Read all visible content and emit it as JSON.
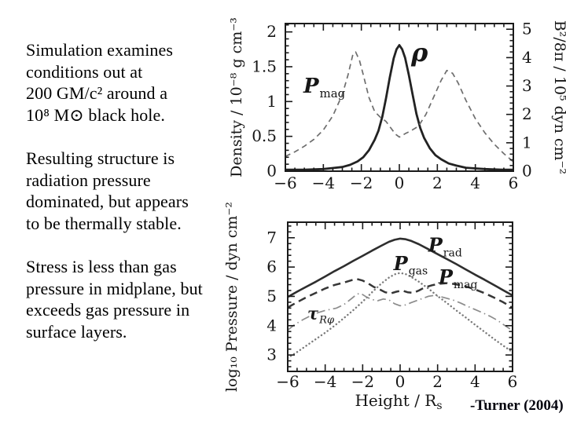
{
  "slide": {
    "background": "#ffffff",
    "text_color": "#000000",
    "paragraphs": [
      {
        "lines": [
          "Simulation examines",
          "conditions out at",
          "200 GM/c² around a",
          "10⁸ M⊙ black hole."
        ]
      },
      {
        "lines": [
          "Resulting structure is",
          "radiation pressure",
          "dominated, but appears",
          "to be thermally stable."
        ]
      },
      {
        "lines": [
          "Stress is less than gas",
          "pressure in midplane, but",
          "exceeds gas pressure in",
          "surface layers."
        ]
      }
    ],
    "attribution": "-Turner (2004)"
  },
  "chart_data": [
    {
      "type": "line",
      "title": "",
      "xlabel": "",
      "ylabel_left": "Density / 10⁻⁸ g cm⁻³",
      "ylabel_right": "B²/8π / 10⁵ dyn cm⁻²",
      "xlim": [
        -6,
        6
      ],
      "ylim_left": [
        0,
        2.12
      ],
      "ylim_right": [
        0,
        5.2
      ],
      "grid": false,
      "xticks": {
        "major": [
          -6,
          -4,
          -2,
          0,
          2,
          4,
          6
        ],
        "labels": [
          "−6",
          "−4",
          "−2",
          "0",
          "2",
          "4",
          "6"
        ],
        "minor_step": 0.5
      },
      "yticks_left": {
        "major": [
          0,
          0.5,
          1,
          1.5,
          2
        ],
        "labels": [
          "0",
          "0.5",
          "1",
          "1.5",
          "2"
        ],
        "minor_step": 0.1
      },
      "yticks_right": {
        "major": [
          0,
          1,
          2,
          3,
          4,
          5
        ],
        "labels": [
          "0",
          "1",
          "2",
          "3",
          "4",
          "5"
        ],
        "minor_step": 0.2
      },
      "series": [
        {
          "name": "rho",
          "label": "ρ",
          "axis": "left",
          "style": "solid",
          "color": "#222222",
          "width": 2.8,
          "points": [
            [
              -6,
              0.02
            ],
            [
              -5,
              0.02
            ],
            [
              -4,
              0.03
            ],
            [
              -3.5,
              0.045
            ],
            [
              -3,
              0.06
            ],
            [
              -2.6,
              0.09
            ],
            [
              -2.2,
              0.14
            ],
            [
              -1.9,
              0.2
            ],
            [
              -1.6,
              0.3
            ],
            [
              -1.3,
              0.45
            ],
            [
              -1.1,
              0.58
            ],
            [
              -0.9,
              0.78
            ],
            [
              -0.7,
              1.05
            ],
            [
              -0.5,
              1.35
            ],
            [
              -0.3,
              1.62
            ],
            [
              -0.15,
              1.75
            ],
            [
              0,
              1.81
            ],
            [
              0.15,
              1.75
            ],
            [
              0.3,
              1.63
            ],
            [
              0.5,
              1.38
            ],
            [
              0.7,
              1.1
            ],
            [
              0.9,
              0.82
            ],
            [
              1.1,
              0.62
            ],
            [
              1.3,
              0.48
            ],
            [
              1.6,
              0.33
            ],
            [
              1.9,
              0.23
            ],
            [
              2.2,
              0.17
            ],
            [
              2.6,
              0.11
            ],
            [
              3,
              0.08
            ],
            [
              3.5,
              0.05
            ],
            [
              4,
              0.04
            ],
            [
              4.5,
              0.03
            ],
            [
              5,
              0.025
            ],
            [
              5.5,
              0.02
            ],
            [
              6,
              0.02
            ]
          ]
        },
        {
          "name": "P_mag",
          "label": "P mag",
          "axis": "right",
          "style": "dashed",
          "color": "#6e6e6e",
          "width": 1.7,
          "points": [
            [
              -6,
              0.52
            ],
            [
              -5.5,
              0.68
            ],
            [
              -5,
              0.88
            ],
            [
              -4.5,
              1.12
            ],
            [
              -4,
              1.45
            ],
            [
              -3.5,
              1.95
            ],
            [
              -3,
              2.7
            ],
            [
              -2.7,
              3.4
            ],
            [
              -2.45,
              4.1
            ],
            [
              -2.3,
              4.2
            ],
            [
              -2.1,
              3.9
            ],
            [
              -1.9,
              3.4
            ],
            [
              -1.6,
              2.6
            ],
            [
              -1.3,
              2.1
            ],
            [
              -1,
              1.9
            ],
            [
              -0.7,
              1.75
            ],
            [
              -0.4,
              1.48
            ],
            [
              -0.2,
              1.3
            ],
            [
              0,
              1.2
            ],
            [
              0.3,
              1.32
            ],
            [
              0.6,
              1.42
            ],
            [
              1,
              1.58
            ],
            [
              1.4,
              2.0
            ],
            [
              1.8,
              2.6
            ],
            [
              2.2,
              3.2
            ],
            [
              2.5,
              3.55
            ],
            [
              2.8,
              3.45
            ],
            [
              3.1,
              3.1
            ],
            [
              3.5,
              2.5
            ],
            [
              4,
              1.85
            ],
            [
              4.5,
              1.35
            ],
            [
              5,
              0.95
            ],
            [
              5.5,
              0.62
            ],
            [
              6,
              0.33
            ]
          ]
        }
      ],
      "annotations": [
        {
          "text": "ρ",
          "sub": "",
          "x": 0.62,
          "y": 1.58,
          "size": 32,
          "sub_size": 0,
          "italic": true
        },
        {
          "text": "P",
          "sub": "mag",
          "x": -5.05,
          "y": 1.13,
          "size": 26,
          "sub_size": 15,
          "italic": true
        }
      ]
    },
    {
      "type": "line",
      "title": "",
      "xlabel": {
        "text": "Height / R",
        "sub": "s"
      },
      "ylabel_left": "log₁₀ Pressure / dyn cm⁻²",
      "xlim": [
        -6,
        6
      ],
      "ylim_left": [
        2.44,
        7.53
      ],
      "grid": false,
      "xticks": {
        "major": [
          -6,
          -4,
          -2,
          0,
          2,
          4,
          6
        ],
        "labels": [
          "−6",
          "−4",
          "−2",
          "0",
          "2",
          "4",
          "6"
        ],
        "minor_step": 0.5
      },
      "yticks_left": {
        "major": [
          3,
          4,
          5,
          6,
          7
        ],
        "labels": [
          "3",
          "4",
          "5",
          "6",
          "7"
        ],
        "minor_step": 0.2
      },
      "series": [
        {
          "name": "P_rad",
          "label": "P rad",
          "axis": "left",
          "style": "solid",
          "color": "#2e2e2e",
          "width": 2.6,
          "points": [
            [
              -6,
              4.98
            ],
            [
              -5.5,
              5.16
            ],
            [
              -5,
              5.33
            ],
            [
              -4.5,
              5.5
            ],
            [
              -4,
              5.68
            ],
            [
              -3.5,
              5.86
            ],
            [
              -3,
              6.03
            ],
            [
              -2.5,
              6.21
            ],
            [
              -2,
              6.38
            ],
            [
              -1.5,
              6.56
            ],
            [
              -1,
              6.73
            ],
            [
              -0.6,
              6.86
            ],
            [
              -0.3,
              6.93
            ],
            [
              0,
              6.97
            ],
            [
              0.3,
              6.95
            ],
            [
              0.6,
              6.89
            ],
            [
              1,
              6.78
            ],
            [
              1.5,
              6.61
            ],
            [
              2,
              6.44
            ],
            [
              2.5,
              6.27
            ],
            [
              3,
              6.1
            ],
            [
              3.5,
              5.92
            ],
            [
              4,
              5.74
            ],
            [
              4.5,
              5.57
            ],
            [
              5,
              5.39
            ],
            [
              5.5,
              5.21
            ],
            [
              6,
              5.03
            ]
          ]
        },
        {
          "name": "P_gas",
          "label": "P gas",
          "axis": "left",
          "style": "dotted",
          "color": "#7a7a7a",
          "width": 2.4,
          "points": [
            [
              -6,
              2.9
            ],
            [
              -5.5,
              3.1
            ],
            [
              -5,
              3.32
            ],
            [
              -4.5,
              3.54
            ],
            [
              -4,
              3.76
            ],
            [
              -3.5,
              4.0
            ],
            [
              -3,
              4.26
            ],
            [
              -2.5,
              4.53
            ],
            [
              -2,
              4.82
            ],
            [
              -1.5,
              5.14
            ],
            [
              -1,
              5.44
            ],
            [
              -0.6,
              5.64
            ],
            [
              -0.3,
              5.75
            ],
            [
              0,
              5.8
            ],
            [
              0.3,
              5.76
            ],
            [
              0.6,
              5.66
            ],
            [
              1,
              5.5
            ],
            [
              1.5,
              5.27
            ],
            [
              2,
              5.01
            ],
            [
              2.5,
              4.77
            ],
            [
              3,
              4.52
            ],
            [
              3.5,
              4.28
            ],
            [
              4,
              4.03
            ],
            [
              4.5,
              3.79
            ],
            [
              5,
              3.55
            ],
            [
              5.5,
              3.32
            ],
            [
              6,
              3.1
            ]
          ]
        },
        {
          "name": "P_mag",
          "label": "P mag",
          "axis": "left",
          "style": "dashed",
          "color": "#363636",
          "width": 2.5,
          "points": [
            [
              -6,
              4.62
            ],
            [
              -5.5,
              4.8
            ],
            [
              -5,
              4.97
            ],
            [
              -4.5,
              5.12
            ],
            [
              -4,
              5.27
            ],
            [
              -3.5,
              5.39
            ],
            [
              -3,
              5.47
            ],
            [
              -2.6,
              5.55
            ],
            [
              -2.3,
              5.59
            ],
            [
              -2,
              5.54
            ],
            [
              -1.7,
              5.44
            ],
            [
              -1.4,
              5.32
            ],
            [
              -1.1,
              5.24
            ],
            [
              -0.8,
              5.14
            ],
            [
              -0.5,
              5.1
            ],
            [
              -0.2,
              5.16
            ],
            [
              0.1,
              5.2
            ],
            [
              0.4,
              5.14
            ],
            [
              0.7,
              5.12
            ],
            [
              1,
              5.2
            ],
            [
              1.3,
              5.3
            ],
            [
              1.7,
              5.38
            ],
            [
              2.1,
              5.43
            ],
            [
              2.5,
              5.45
            ],
            [
              2.9,
              5.42
            ],
            [
              3.3,
              5.37
            ],
            [
              3.7,
              5.3
            ],
            [
              4.1,
              5.21
            ],
            [
              4.5,
              5.11
            ],
            [
              5,
              4.96
            ],
            [
              5.5,
              4.8
            ],
            [
              6,
              4.61
            ]
          ]
        },
        {
          "name": "tau_Rphi",
          "label": "τ Rφ",
          "axis": "left",
          "style": "dashdot",
          "color": "#8c8c8c",
          "width": 1.7,
          "points": [
            [
              -6,
              3.85
            ],
            [
              -5.6,
              4.05
            ],
            [
              -5.2,
              4.2
            ],
            [
              -4.8,
              4.33
            ],
            [
              -4.4,
              4.44
            ],
            [
              -4,
              4.52
            ],
            [
              -3.7,
              4.56
            ],
            [
              -3.4,
              4.6
            ],
            [
              -3,
              4.72
            ],
            [
              -2.6,
              4.92
            ],
            [
              -2.3,
              5.08
            ],
            [
              -2.1,
              5.1
            ],
            [
              -1.8,
              4.98
            ],
            [
              -1.5,
              4.89
            ],
            [
              -1.2,
              4.85
            ],
            [
              -0.9,
              4.91
            ],
            [
              -0.6,
              4.88
            ],
            [
              -0.3,
              4.75
            ],
            [
              0,
              4.68
            ],
            [
              0.3,
              4.71
            ],
            [
              0.6,
              4.79
            ],
            [
              0.9,
              4.86
            ],
            [
              1.2,
              4.93
            ],
            [
              1.5,
              5.0
            ],
            [
              1.8,
              5.03
            ],
            [
              2.1,
              5.0
            ],
            [
              2.4,
              4.95
            ],
            [
              2.8,
              4.88
            ],
            [
              3.2,
              4.78
            ],
            [
              3.6,
              4.66
            ],
            [
              4,
              4.55
            ],
            [
              4.4,
              4.44
            ],
            [
              4.8,
              4.32
            ],
            [
              5.2,
              4.18
            ],
            [
              5.6,
              4.0
            ],
            [
              6,
              3.83
            ]
          ]
        }
      ],
      "annotations": [
        {
          "text": "P",
          "sub": "rad",
          "x": 1.5,
          "y": 6.52,
          "size": 24,
          "sub_size": 14,
          "italic": true
        },
        {
          "text": "P",
          "sub": "gas",
          "x": -0.35,
          "y": 5.9,
          "size": 24,
          "sub_size": 14,
          "italic": true
        },
        {
          "text": "P",
          "sub": "mag",
          "x": 2.05,
          "y": 5.44,
          "size": 24,
          "sub_size": 14,
          "italic": true
        },
        {
          "text": "τ",
          "sub": "Rφ",
          "x": -4.95,
          "y": 4.22,
          "size": 21,
          "sub_size": 13,
          "italic": true,
          "sub_italic": true
        }
      ]
    }
  ]
}
